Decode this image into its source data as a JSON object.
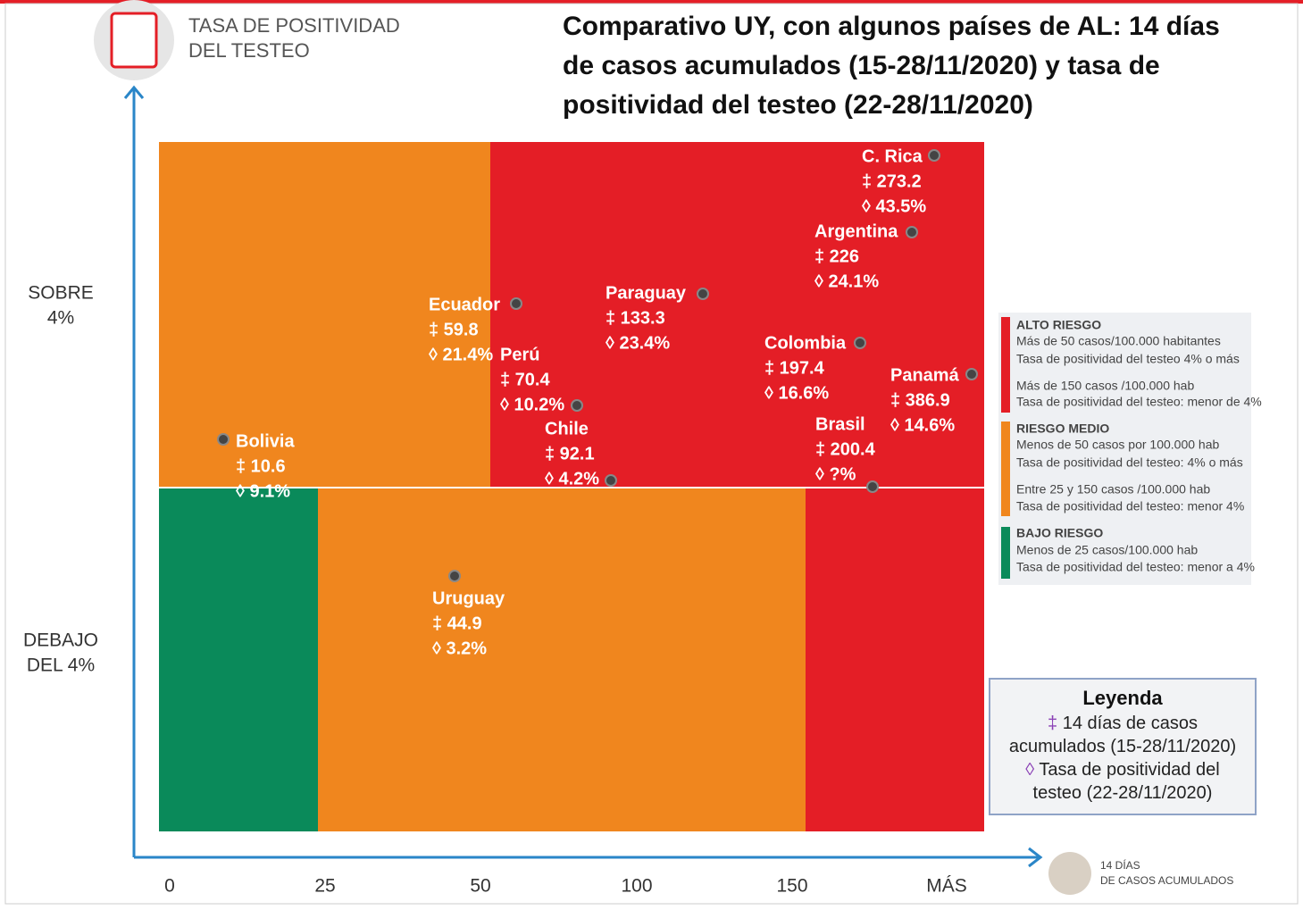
{
  "header": {
    "icon_title": [
      "TASA DE POSITIVIDAD",
      "DEL TESTEO"
    ],
    "title": [
      "Comparativo UY, con algunos países de AL: 14 días",
      "de casos acumulados (15-28/11/2020)  y tasa de",
      "positividad del testeo (22-28/11/2020)"
    ]
  },
  "y_labels": {
    "above": [
      "SOBRE",
      "4%"
    ],
    "below": [
      "DEBAJO",
      "DEL 4%"
    ]
  },
  "x_labels": [
    "0",
    "25",
    "50",
    "100",
    "150",
    "MÁS"
  ],
  "x_axis_title": [
    "14 DÍAS",
    "DE CASOS ACUMULADOS"
  ],
  "countries": [
    {
      "name": "C. Rica",
      "cases": "‡ 273.2",
      "positivity": "◊ 43.5%"
    },
    {
      "name": "Argentina",
      "cases": "‡ 226",
      "positivity": "◊ 24.1%"
    },
    {
      "name": "Ecuador",
      "cases": "‡ 59.8",
      "positivity": "◊ 21.4%"
    },
    {
      "name": "Paraguay",
      "cases": "‡ 133.3",
      "positivity": "◊ 23.4%"
    },
    {
      "name": "Perú",
      "cases": "‡ 70.4",
      "positivity": "◊ 10.2%"
    },
    {
      "name": "Colombia",
      "cases": "‡ 197.4",
      "positivity": "◊ 16.6%"
    },
    {
      "name": "Panamá",
      "cases": "‡ 386.9",
      "positivity": "◊ 14.6%"
    },
    {
      "name": "Chile",
      "cases": "‡ 92.1",
      "positivity": "◊ 4.2%"
    },
    {
      "name": "Brasil",
      "cases": "‡ 200.4",
      "positivity": "◊ ?%"
    },
    {
      "name": "Bolivia",
      "cases": "‡ 10.6",
      "positivity": "◊ 9.1%"
    },
    {
      "name": "Uruguay",
      "cases": "‡ 44.9",
      "positivity": "◊ 3.2%"
    }
  ],
  "risk_legend": [
    {
      "title": "ALTO RIESGO",
      "lines": [
        "Más de 50 casos/100.000 habitantes",
        "Tasa de positividad del testeo 4% o más",
        "Más de 150 casos /100.000 hab",
        "Tasa de positividad del testeo: menor de 4%"
      ]
    },
    {
      "title": "RIESGO MEDIO",
      "lines": [
        "Menos de 50 casos por 100.000 hab",
        "Tasa de positividad del testeo: 4% o más",
        "Entre 25 y 150 casos /100.000 hab",
        "Tasa de positividad del testeo: menor 4%"
      ]
    },
    {
      "title": "BAJO RIESGO",
      "lines": [
        "Menos de 25 casos/100.000 hab",
        "Tasa de positividad del testeo: menor a 4%"
      ]
    }
  ],
  "key": {
    "title": "Leyenda",
    "lines": [
      {
        "symbol": "‡",
        "text": "14 días de casos"
      },
      {
        "text": "acumulados (15-28/11/2020)"
      },
      {
        "symbol": "◊",
        "text": "Tasa de positividad del"
      },
      {
        "text": "testeo (22-28/11/2020)"
      }
    ]
  }
}
